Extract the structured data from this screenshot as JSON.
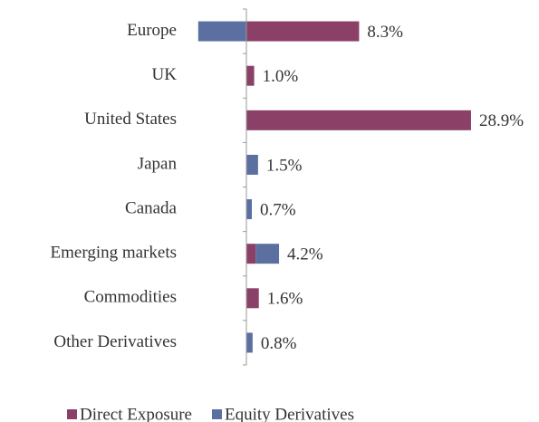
{
  "chart_data": {
    "type": "bar",
    "orientation": "horizontal",
    "stacked": true,
    "categories": [
      "Europe",
      "UK",
      "United States",
      "Japan",
      "Canada",
      "Emerging markets",
      "Commodities",
      "Other Derivatives"
    ],
    "series": [
      {
        "name": "Direct Exposure",
        "color": "#8b4068",
        "values": [
          14.5,
          1.0,
          28.9,
          0,
          0,
          1.2,
          1.6,
          0
        ]
      },
      {
        "name": "Equity Derivatives",
        "color": "#5b70a1",
        "values": [
          -6.2,
          0,
          0,
          1.5,
          0.7,
          3.0,
          0,
          0.8
        ]
      }
    ],
    "totals": [
      8.3,
      1.0,
      28.9,
      1.5,
      0.7,
      4.2,
      1.6,
      0.8
    ],
    "total_labels": [
      "8.3%",
      "1.0%",
      "28.9%",
      "1.5%",
      "0.7%",
      "4.2%",
      "1.6%",
      "0.8%"
    ],
    "xlim": [
      -10,
      30
    ],
    "legend": "bottom"
  }
}
